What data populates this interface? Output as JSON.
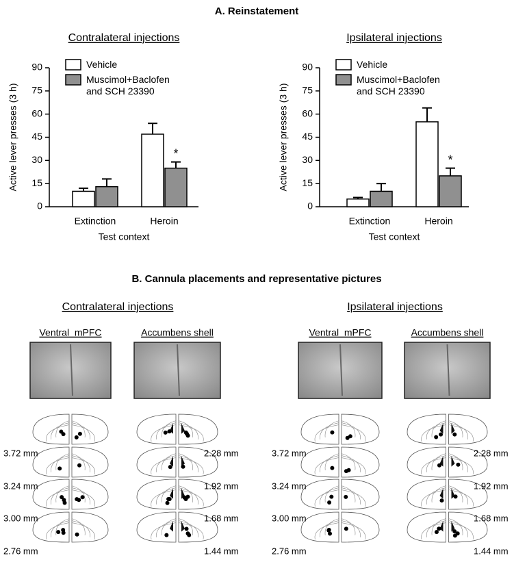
{
  "panel_a": {
    "title": "A. Reinstatement"
  },
  "chart_data": [
    {
      "type": "bar",
      "title": "Contralateral injections",
      "categories": [
        "Extinction",
        "Heroin"
      ],
      "series": [
        {
          "name": "Vehicle",
          "color": "#ffffff",
          "values": [
            10,
            47
          ],
          "errors": [
            2,
            7
          ]
        },
        {
          "name": "Muscimol+Baclofen and SCH 23390",
          "color": "#909090",
          "values": [
            13,
            25
          ],
          "errors": [
            5,
            4
          ]
        }
      ],
      "annotations": [
        {
          "text": "*",
          "category": "Heroin",
          "series": "Muscimol+Baclofen and SCH 23390"
        }
      ],
      "xlabel": "Test context",
      "ylabel": "Active lever presses (3 h)",
      "ylim": [
        0,
        90
      ],
      "yticks": [
        0,
        15,
        30,
        45,
        60,
        75,
        90
      ],
      "legend": "upper left"
    },
    {
      "type": "bar",
      "title": "Ipsilateral injections",
      "categories": [
        "Extinction",
        "Heroin"
      ],
      "series": [
        {
          "name": "Vehicle",
          "color": "#ffffff",
          "values": [
            5,
            55
          ],
          "errors": [
            1,
            9
          ]
        },
        {
          "name": "Muscimol+Baclofen and SCH 23390",
          "color": "#909090",
          "values": [
            10,
            20
          ],
          "errors": [
            5,
            5
          ]
        }
      ],
      "annotations": [
        {
          "text": "*",
          "category": "Heroin",
          "series": "Muscimol+Baclofen and SCH 23390"
        }
      ],
      "xlabel": "Test context",
      "ylabel": "Active lever presses (3 h)",
      "ylim": [
        0,
        90
      ],
      "yticks": [
        0,
        15,
        30,
        45,
        60,
        75,
        90
      ],
      "legend": "upper left"
    }
  ],
  "panel_b": {
    "title": "B. Cannula placements and representative pictures",
    "groups": [
      {
        "title": "Contralateral injections",
        "regions": [
          {
            "name": "Ventral  mPFC",
            "levels": [
              "3.72 mm",
              "3.24 mm",
              "3.00 mm",
              "2.76 mm"
            ]
          },
          {
            "name": "Accumbens shell",
            "levels": [
              "2.28 mm",
              "1.92 mm",
              "1.68 mm",
              "1.44 mm"
            ]
          }
        ]
      },
      {
        "title": "Ipsilateral injections",
        "regions": [
          {
            "name": "Ventral  mPFC",
            "levels": [
              "3.72 mm",
              "3.24 mm",
              "3.00 mm",
              "2.76 mm"
            ]
          },
          {
            "name": "Accumbens shell",
            "levels": [
              "2.28 mm",
              "1.92 mm",
              "1.68 mm",
              "1.44 mm"
            ]
          }
        ]
      }
    ]
  }
}
